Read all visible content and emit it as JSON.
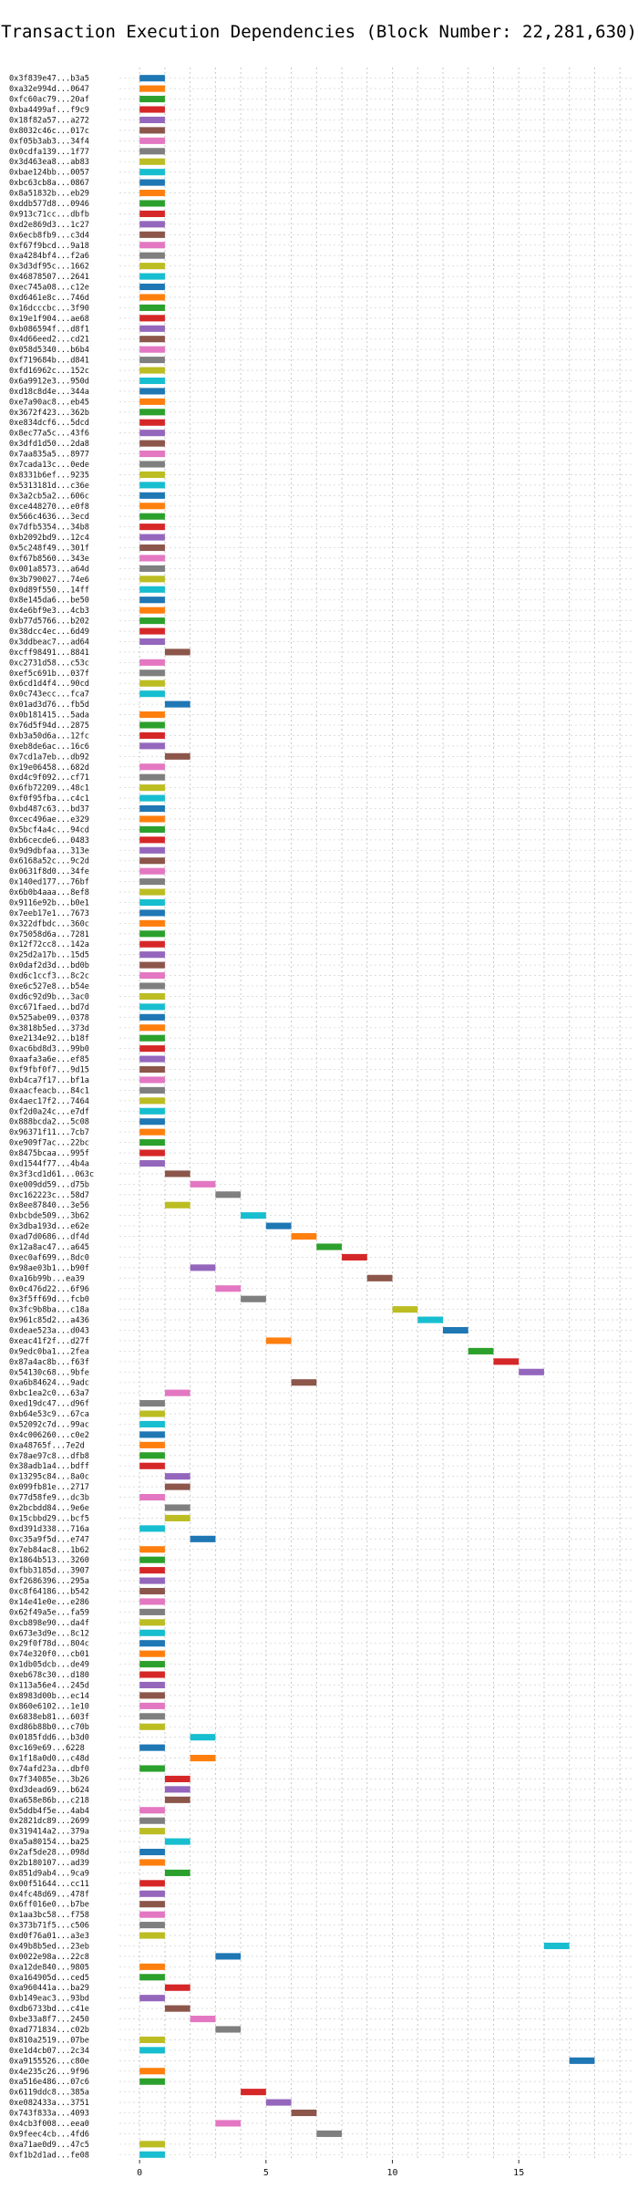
{
  "chart_data": {
    "type": "bar",
    "orientation": "horizontal",
    "title": "Transaction Execution Dependencies (Block Number: 22,281,630)",
    "xlabel": "",
    "ylabel": "",
    "xlim": [
      -0.8,
      19.5
    ],
    "xticks": [
      0,
      5,
      10,
      15
    ],
    "grid": true,
    "legend": "none",
    "palette": [
      "#1f77b4",
      "#ff7f0e",
      "#2ca02c",
      "#d62728",
      "#9467bd",
      "#8c564b",
      "#e377c2",
      "#7f7f7f",
      "#bcbd22",
      "#17becf"
    ],
    "transactions": [
      {
        "label": "0x3f839e47...b3a5",
        "start": 0,
        "end": 1
      },
      {
        "label": "0xa32e994d...0647",
        "start": 0,
        "end": 1
      },
      {
        "label": "0xfc60ac79...20af",
        "start": 0,
        "end": 1
      },
      {
        "label": "0xba4499af...f9c9",
        "start": 0,
        "end": 1
      },
      {
        "label": "0x18f82a57...a272",
        "start": 0,
        "end": 1
      },
      {
        "label": "0x8032c46c...017c",
        "start": 0,
        "end": 1
      },
      {
        "label": "0xf05b3ab3...34f4",
        "start": 0,
        "end": 1
      },
      {
        "label": "0x0cdfa139...1f77",
        "start": 0,
        "end": 1
      },
      {
        "label": "0x3d463ea8...ab83",
        "start": 0,
        "end": 1
      },
      {
        "label": "0xbae124bb...0057",
        "start": 0,
        "end": 1
      },
      {
        "label": "0xbc63cb8a...0867",
        "start": 0,
        "end": 1
      },
      {
        "label": "0x8a51832b...eb29",
        "start": 0,
        "end": 1
      },
      {
        "label": "0xddb577d8...0946",
        "start": 0,
        "end": 1
      },
      {
        "label": "0x913c71cc...dbfb",
        "start": 0,
        "end": 1
      },
      {
        "label": "0xd2e869d3...1c27",
        "start": 0,
        "end": 1
      },
      {
        "label": "0x6ecb8fb9...c3d4",
        "start": 0,
        "end": 1
      },
      {
        "label": "0xf67f9bcd...9a18",
        "start": 0,
        "end": 1
      },
      {
        "label": "0xa4284bf4...f2a6",
        "start": 0,
        "end": 1
      },
      {
        "label": "0x3d3df95c...1662",
        "start": 0,
        "end": 1
      },
      {
        "label": "0x46878507...2641",
        "start": 0,
        "end": 1
      },
      {
        "label": "0xec745a08...c12e",
        "start": 0,
        "end": 1
      },
      {
        "label": "0xd6461e8c...746d",
        "start": 0,
        "end": 1
      },
      {
        "label": "0x16dcccbc...3f90",
        "start": 0,
        "end": 1
      },
      {
        "label": "0x19e1f904...ae68",
        "start": 0,
        "end": 1
      },
      {
        "label": "0xb086594f...d8f1",
        "start": 0,
        "end": 1
      },
      {
        "label": "0x4d66eed2...cd21",
        "start": 0,
        "end": 1
      },
      {
        "label": "0x058d5340...b6b4",
        "start": 0,
        "end": 1
      },
      {
        "label": "0xf719684b...d841",
        "start": 0,
        "end": 1
      },
      {
        "label": "0xfd16962c...152c",
        "start": 0,
        "end": 1
      },
      {
        "label": "0x6a9912e3...950d",
        "start": 0,
        "end": 1
      },
      {
        "label": "0xd18c8d4e...344a",
        "start": 0,
        "end": 1
      },
      {
        "label": "0xe7a90ac8...eb45",
        "start": 0,
        "end": 1
      },
      {
        "label": "0x3672f423...362b",
        "start": 0,
        "end": 1
      },
      {
        "label": "0xe834dcf6...5dcd",
        "start": 0,
        "end": 1
      },
      {
        "label": "0x8ec77a5c...43f6",
        "start": 0,
        "end": 1
      },
      {
        "label": "0x3dfd1d50...2da8",
        "start": 0,
        "end": 1
      },
      {
        "label": "0x7aa835a5...8977",
        "start": 0,
        "end": 1
      },
      {
        "label": "0x7cada13c...0ede",
        "start": 0,
        "end": 1
      },
      {
        "label": "0x8331b6ef...9235",
        "start": 0,
        "end": 1
      },
      {
        "label": "0x5313181d...c36e",
        "start": 0,
        "end": 1
      },
      {
        "label": "0x3a2cb5a2...606c",
        "start": 0,
        "end": 1
      },
      {
        "label": "0xce448270...e0f8",
        "start": 0,
        "end": 1
      },
      {
        "label": "0x566c4636...3ecd",
        "start": 0,
        "end": 1
      },
      {
        "label": "0x7dfb5354...34b8",
        "start": 0,
        "end": 1
      },
      {
        "label": "0xb2092bd9...12c4",
        "start": 0,
        "end": 1
      },
      {
        "label": "0x5c248f49...301f",
        "start": 0,
        "end": 1
      },
      {
        "label": "0xf67b8560...343e",
        "start": 0,
        "end": 1
      },
      {
        "label": "0x001a8573...a64d",
        "start": 0,
        "end": 1
      },
      {
        "label": "0x3b790027...74e6",
        "start": 0,
        "end": 1
      },
      {
        "label": "0x0d89f550...14ff",
        "start": 0,
        "end": 1
      },
      {
        "label": "0x8e145da6...be50",
        "start": 0,
        "end": 1
      },
      {
        "label": "0x4e6bf9e3...4cb3",
        "start": 0,
        "end": 1
      },
      {
        "label": "0xb77d5766...b202",
        "start": 0,
        "end": 1
      },
      {
        "label": "0x38dcc4ec...6d49",
        "start": 0,
        "end": 1
      },
      {
        "label": "0x3ddbeac7...ad64",
        "start": 0,
        "end": 1
      },
      {
        "label": "0xcff98491...8841",
        "start": 1,
        "end": 2
      },
      {
        "label": "0xc2731d58...c53c",
        "start": 0,
        "end": 1
      },
      {
        "label": "0xef5c691b...037f",
        "start": 0,
        "end": 1
      },
      {
        "label": "0x6cd1d4f4...90cd",
        "start": 0,
        "end": 1
      },
      {
        "label": "0x0c743ecc...fca7",
        "start": 0,
        "end": 1
      },
      {
        "label": "0x01ad3d76...fb5d",
        "start": 1,
        "end": 2
      },
      {
        "label": "0x0b181415...5ada",
        "start": 0,
        "end": 1
      },
      {
        "label": "0x76d5f94d...2875",
        "start": 0,
        "end": 1
      },
      {
        "label": "0xb3a50d6a...12fc",
        "start": 0,
        "end": 1
      },
      {
        "label": "0xeb8de6ac...16c6",
        "start": 0,
        "end": 1
      },
      {
        "label": "0x7cd1a7eb...db92",
        "start": 1,
        "end": 2
      },
      {
        "label": "0x19e06458...682d",
        "start": 0,
        "end": 1
      },
      {
        "label": "0xd4c9f092...cf71",
        "start": 0,
        "end": 1
      },
      {
        "label": "0x6fb72209...48c1",
        "start": 0,
        "end": 1
      },
      {
        "label": "0xf0f95fba...c4c1",
        "start": 0,
        "end": 1
      },
      {
        "label": "0xbd487c63...bd37",
        "start": 0,
        "end": 1
      },
      {
        "label": "0xcec496ae...e329",
        "start": 0,
        "end": 1
      },
      {
        "label": "0x5bcf4a4c...94cd",
        "start": 0,
        "end": 1
      },
      {
        "label": "0xb6cecde6...0483",
        "start": 0,
        "end": 1
      },
      {
        "label": "0x9d9dbfaa...313e",
        "start": 0,
        "end": 1
      },
      {
        "label": "0x6168a52c...9c2d",
        "start": 0,
        "end": 1
      },
      {
        "label": "0x0631f8d0...34fe",
        "start": 0,
        "end": 1
      },
      {
        "label": "0x140ed177...76bf",
        "start": 0,
        "end": 1
      },
      {
        "label": "0x6b0b4aaa...8ef8",
        "start": 0,
        "end": 1
      },
      {
        "label": "0x9116e92b...b0e1",
        "start": 0,
        "end": 1
      },
      {
        "label": "0x7eeb17e1...7673",
        "start": 0,
        "end": 1
      },
      {
        "label": "0x322dfbdc...360c",
        "start": 0,
        "end": 1
      },
      {
        "label": "0x75058d6a...7281",
        "start": 0,
        "end": 1
      },
      {
        "label": "0x12f72cc8...142a",
        "start": 0,
        "end": 1
      },
      {
        "label": "0x25d2a17b...15d5",
        "start": 0,
        "end": 1
      },
      {
        "label": "0x0daf2d3d...bd0b",
        "start": 0,
        "end": 1
      },
      {
        "label": "0xd6c1ccf3...8c2c",
        "start": 0,
        "end": 1
      },
      {
        "label": "0xe6c527e8...b54e",
        "start": 0,
        "end": 1
      },
      {
        "label": "0xd6c92d9b...3ac0",
        "start": 0,
        "end": 1
      },
      {
        "label": "0xc671faed...bd7d",
        "start": 0,
        "end": 1
      },
      {
        "label": "0x525abe09...0378",
        "start": 0,
        "end": 1
      },
      {
        "label": "0x3818b5ed...373d",
        "start": 0,
        "end": 1
      },
      {
        "label": "0xe2134e92...b18f",
        "start": 0,
        "end": 1
      },
      {
        "label": "0xac6bd8d3...99b0",
        "start": 0,
        "end": 1
      },
      {
        "label": "0xaafa3a6e...ef85",
        "start": 0,
        "end": 1
      },
      {
        "label": "0xf9fbf0f7...9d15",
        "start": 0,
        "end": 1
      },
      {
        "label": "0xb4ca7f17...bf1a",
        "start": 0,
        "end": 1
      },
      {
        "label": "0xaacfeacb...84c1",
        "start": 0,
        "end": 1
      },
      {
        "label": "0x4aec17f2...7464",
        "start": 0,
        "end": 1
      },
      {
        "label": "0xf2d0a24c...e7df",
        "start": 0,
        "end": 1
      },
      {
        "label": "0x888bcda2...5c08",
        "start": 0,
        "end": 1
      },
      {
        "label": "0x96371f11...7cb7",
        "start": 0,
        "end": 1
      },
      {
        "label": "0xe909f7ac...22bc",
        "start": 0,
        "end": 1
      },
      {
        "label": "0x8475bcaa...995f",
        "start": 0,
        "end": 1
      },
      {
        "label": "0xd1544f77...4b4a",
        "start": 0,
        "end": 1
      },
      {
        "label": "0x3f3cd1d61...063c",
        "start": 1,
        "end": 2
      },
      {
        "label": "0xe009dd59...d75b",
        "start": 2,
        "end": 3
      },
      {
        "label": "0xc162223c...58d7",
        "start": 3,
        "end": 4
      },
      {
        "label": "0x8ee87840...3e56",
        "start": 1,
        "end": 2
      },
      {
        "label": "0xbcbde509...3b62",
        "start": 4,
        "end": 5
      },
      {
        "label": "0x3dba193d...e62e",
        "start": 5,
        "end": 6
      },
      {
        "label": "0xad7d0686...df4d",
        "start": 6,
        "end": 7
      },
      {
        "label": "0x12a8ac47...a645",
        "start": 7,
        "end": 8
      },
      {
        "label": "0xec0af699...8dc0",
        "start": 8,
        "end": 9
      },
      {
        "label": "0x98ae03b1...b90f",
        "start": 2,
        "end": 3
      },
      {
        "label": "0xa16b99b...ea39",
        "start": 9,
        "end": 10
      },
      {
        "label": "0x0c476d22...6f96",
        "start": 3,
        "end": 4
      },
      {
        "label": "0x3f5ff69d...fcb0",
        "start": 4,
        "end": 5
      },
      {
        "label": "0x3fc9b8ba...c18a",
        "start": 10,
        "end": 11
      },
      {
        "label": "0x961c85d2...a436",
        "start": 11,
        "end": 12
      },
      {
        "label": "0xdeae523a...d043",
        "start": 12,
        "end": 13
      },
      {
        "label": "0xeac41f2f...d27f",
        "start": 5,
        "end": 6
      },
      {
        "label": "0x9edc0ba1...2fea",
        "start": 13,
        "end": 14
      },
      {
        "label": "0x87a4ac8b...f63f",
        "start": 14,
        "end": 15
      },
      {
        "label": "0x54130c68...9bfe",
        "start": 15,
        "end": 16
      },
      {
        "label": "0xa6b84624...9adc",
        "start": 6,
        "end": 7
      },
      {
        "label": "0xbc1ea2c0...63a7",
        "start": 1,
        "end": 2
      },
      {
        "label": "0xed19dc47...d96f",
        "start": 0,
        "end": 1
      },
      {
        "label": "0xb64e53c9...67ca",
        "start": 0,
        "end": 1
      },
      {
        "label": "0x52092c7d...99ac",
        "start": 0,
        "end": 1
      },
      {
        "label": "0x4c006260...c0e2",
        "start": 0,
        "end": 1
      },
      {
        "label": "0xa48765f...7e2d",
        "start": 0,
        "end": 1
      },
      {
        "label": "0x78ae97c8...dfb8",
        "start": 0,
        "end": 1
      },
      {
        "label": "0x38adb1a4...bdff",
        "start": 0,
        "end": 1
      },
      {
        "label": "0x13295c84...8a0c",
        "start": 1,
        "end": 2
      },
      {
        "label": "0x099fb81e...2717",
        "start": 1,
        "end": 2
      },
      {
        "label": "0x77d58fe9...dc3b",
        "start": 0,
        "end": 1
      },
      {
        "label": "0x2bcbdd84...9e6e",
        "start": 1,
        "end": 2
      },
      {
        "label": "0x15cbbd29...bcf5",
        "start": 1,
        "end": 2
      },
      {
        "label": "0xd391d338...716a",
        "start": 0,
        "end": 1
      },
      {
        "label": "0xc35a9f5d...e747",
        "start": 2,
        "end": 3
      },
      {
        "label": "0x7eb84ac8...1b62",
        "start": 0,
        "end": 1
      },
      {
        "label": "0x1864b513...3260",
        "start": 0,
        "end": 1
      },
      {
        "label": "0xfbb3185d...3907",
        "start": 0,
        "end": 1
      },
      {
        "label": "0xf2686396...295a",
        "start": 0,
        "end": 1
      },
      {
        "label": "0xc8f64186...b542",
        "start": 0,
        "end": 1
      },
      {
        "label": "0x14e41e0e...e286",
        "start": 0,
        "end": 1
      },
      {
        "label": "0x62f49a5e...fa59",
        "start": 0,
        "end": 1
      },
      {
        "label": "0xcb898e90...da4f",
        "start": 0,
        "end": 1
      },
      {
        "label": "0x673e3d9e...8c12",
        "start": 0,
        "end": 1
      },
      {
        "label": "0x29f0f78d...804c",
        "start": 0,
        "end": 1
      },
      {
        "label": "0x74e320f0...cb01",
        "start": 0,
        "end": 1
      },
      {
        "label": "0x1db05dcb...de49",
        "start": 0,
        "end": 1
      },
      {
        "label": "0xeb678c30...d180",
        "start": 0,
        "end": 1
      },
      {
        "label": "0x113a56e4...245d",
        "start": 0,
        "end": 1
      },
      {
        "label": "0x8983d00b...ec14",
        "start": 0,
        "end": 1
      },
      {
        "label": "0x860e6102...1e10",
        "start": 0,
        "end": 1
      },
      {
        "label": "0x6838eb81...603f",
        "start": 0,
        "end": 1
      },
      {
        "label": "0xd86b88b0...c70b",
        "start": 0,
        "end": 1
      },
      {
        "label": "0x0185fdd6...b3d0",
        "start": 2,
        "end": 3
      },
      {
        "label": "0xc169e69...6228",
        "start": 0,
        "end": 1
      },
      {
        "label": "0x1f18a0d0...c48d",
        "start": 2,
        "end": 3
      },
      {
        "label": "0x74afd23a...dbf0",
        "start": 0,
        "end": 1
      },
      {
        "label": "0x7f34085e...3b26",
        "start": 1,
        "end": 2
      },
      {
        "label": "0xd3dead69...b624",
        "start": 1,
        "end": 2
      },
      {
        "label": "0xa658e86b...c218",
        "start": 1,
        "end": 2
      },
      {
        "label": "0x5ddb4f5e...4ab4",
        "start": 0,
        "end": 1
      },
      {
        "label": "0x2821dc89...2699",
        "start": 0,
        "end": 1
      },
      {
        "label": "0x319414a2...379a",
        "start": 0,
        "end": 1
      },
      {
        "label": "0xa5a80154...ba25",
        "start": 1,
        "end": 2
      },
      {
        "label": "0x2af5de28...098d",
        "start": 0,
        "end": 1
      },
      {
        "label": "0x2b180107...ad39",
        "start": 0,
        "end": 1
      },
      {
        "label": "0x851d9ab4...9ca9",
        "start": 1,
        "end": 2
      },
      {
        "label": "0x00f51644...cc11",
        "start": 0,
        "end": 1
      },
      {
        "label": "0x4fc48d69...478f",
        "start": 0,
        "end": 1
      },
      {
        "label": "0x6ff016e0...b7be",
        "start": 0,
        "end": 1
      },
      {
        "label": "0x1aa3bc58...f758",
        "start": 0,
        "end": 1
      },
      {
        "label": "0x373b71f5...c506",
        "start": 0,
        "end": 1
      },
      {
        "label": "0xd0f76a01...a3e3",
        "start": 0,
        "end": 1
      },
      {
        "label": "0x49b8b5ed...23eb",
        "start": 16,
        "end": 17
      },
      {
        "label": "0x0022e98a...22c8",
        "start": 3,
        "end": 4
      },
      {
        "label": "0xa12de840...9805",
        "start": 0,
        "end": 1
      },
      {
        "label": "0xa164905d...ced5",
        "start": 0,
        "end": 1
      },
      {
        "label": "0xa960441a...ba29",
        "start": 1,
        "end": 2
      },
      {
        "label": "0xb149eac3...93bd",
        "start": 0,
        "end": 1
      },
      {
        "label": "0xdb6733bd...c41e",
        "start": 1,
        "end": 2
      },
      {
        "label": "0xbe33a8f7...2450",
        "start": 2,
        "end": 3
      },
      {
        "label": "0xad771834...c02b",
        "start": 3,
        "end": 4
      },
      {
        "label": "0x810a2519...07be",
        "start": 0,
        "end": 1
      },
      {
        "label": "0xe1d4cb07...2c34",
        "start": 0,
        "end": 1
      },
      {
        "label": "0xa9155526...c80e",
        "start": 17,
        "end": 18
      },
      {
        "label": "0x4e235c26...9f96",
        "start": 0,
        "end": 1
      },
      {
        "label": "0xa516e486...07c6",
        "start": 0,
        "end": 1
      },
      {
        "label": "0x6119ddc8...385a",
        "start": 4,
        "end": 5
      },
      {
        "label": "0xe082433a...3751",
        "start": 5,
        "end": 6
      },
      {
        "label": "0x743f833a...4093",
        "start": 6,
        "end": 7
      },
      {
        "label": "0x4cb3f008...eea0",
        "start": 3,
        "end": 4
      },
      {
        "label": "0x9feec4cb...4fd6",
        "start": 7,
        "end": 8
      },
      {
        "label": "0xa71ae0d9...47c5",
        "start": 0,
        "end": 1
      },
      {
        "label": "0xf1b2d1ad...fe08",
        "start": 0,
        "end": 1
      }
    ]
  }
}
